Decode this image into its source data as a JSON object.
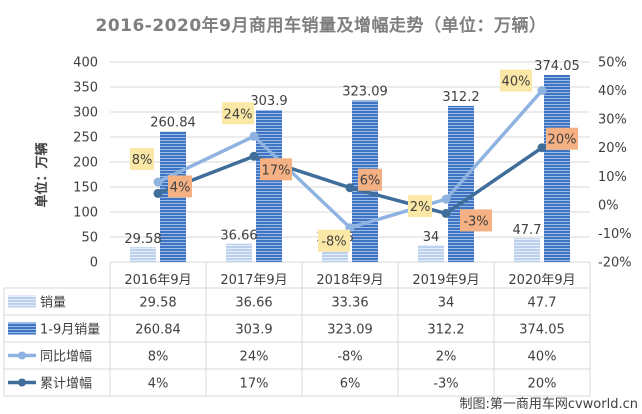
{
  "chart_data": {
    "type": "bar",
    "title": "2016-2020年9月商用车销量及增幅走势（单位：万辆）",
    "ylabel": "单位：万辆",
    "categories": [
      "2016年9月",
      "2017年9月",
      "2018年9月",
      "2019年9月",
      "2020年9月"
    ],
    "y_left": {
      "range": [
        0,
        400
      ],
      "ticks": [
        0,
        50,
        100,
        150,
        200,
        250,
        300,
        350,
        400
      ]
    },
    "y_right": {
      "range": [
        -20,
        50
      ],
      "ticks": [
        "-20%",
        "-10%",
        "0%",
        "10%",
        "20%",
        "30%",
        "40%",
        "50%"
      ]
    },
    "grid": true,
    "legend": "bottom-data-table",
    "series": [
      {
        "name": "销量",
        "kind": "bar",
        "axis": "left",
        "color": "#c5d3ec",
        "values": [
          29.58,
          36.66,
          33.36,
          34,
          47.7
        ],
        "labels": [
          "29.58",
          "36.66",
          "33.36",
          "34",
          "47.7"
        ]
      },
      {
        "name": "1-9月销量",
        "kind": "bar",
        "axis": "left",
        "color": "#4f81c7",
        "values": [
          260.84,
          303.9,
          323.09,
          312.2,
          374.05
        ],
        "labels": [
          "260.84",
          "303.9",
          "323.09",
          "312.2",
          "374.05"
        ]
      },
      {
        "name": "同比增幅",
        "kind": "line",
        "axis": "right",
        "color": "#8fb3e0",
        "values": [
          8,
          24,
          -8,
          2,
          40
        ],
        "labels": [
          "8%",
          "24%",
          "-8%",
          "2%",
          "40%"
        ],
        "label_bg": "#fbe8a6"
      },
      {
        "name": "累计增幅",
        "kind": "line",
        "axis": "right",
        "color": "#3f6e9a",
        "values": [
          4,
          17,
          6,
          -3,
          20
        ],
        "labels": [
          "4%",
          "17%",
          "6%",
          "-3%",
          "20%"
        ],
        "label_bg": "#f5b183"
      }
    ]
  },
  "watermark": "制图:第一商用车网cvworld.cn"
}
